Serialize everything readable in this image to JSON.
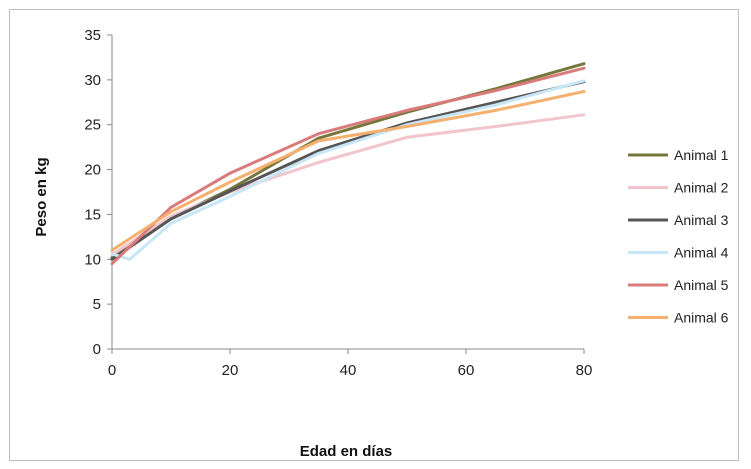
{
  "chart_data": {
    "type": "line",
    "title": "",
    "xlabel": "Edad en días",
    "ylabel": "Peso en kg",
    "xlim": [
      0,
      80
    ],
    "ylim": [
      0,
      35
    ],
    "x_ticks": [
      0,
      20,
      40,
      60,
      80
    ],
    "y_ticks": [
      0,
      5,
      10,
      15,
      20,
      25,
      30,
      35
    ],
    "grid": false,
    "legend_position": "right",
    "series": [
      {
        "name": "Animal 1",
        "color": "#77773c",
        "points": [
          [
            0,
            10.2
          ],
          [
            10,
            14.6
          ],
          [
            20,
            17.8
          ],
          [
            35,
            23.5
          ],
          [
            50,
            26.4
          ],
          [
            65,
            29.0
          ],
          [
            80,
            31.8
          ]
        ]
      },
      {
        "name": "Animal 2",
        "color": "#f2c4cc",
        "points": [
          [
            0,
            10.5
          ],
          [
            10,
            14.8
          ],
          [
            20,
            17.5
          ],
          [
            35,
            20.8
          ],
          [
            50,
            23.6
          ],
          [
            65,
            24.8
          ],
          [
            80,
            26.1
          ]
        ]
      },
      {
        "name": "Animal 3",
        "color": "#555555",
        "points": [
          [
            0,
            10.0
          ],
          [
            10,
            14.5
          ],
          [
            20,
            17.6
          ],
          [
            35,
            22.1
          ],
          [
            50,
            25.2
          ],
          [
            65,
            27.5
          ],
          [
            80,
            29.8
          ]
        ]
      },
      {
        "name": "Animal 4",
        "color": "#c8e6f5",
        "points": [
          [
            0,
            10.6
          ],
          [
            3,
            10.0
          ],
          [
            10,
            14.0
          ],
          [
            20,
            17.0
          ],
          [
            35,
            21.8
          ],
          [
            50,
            25.0
          ],
          [
            65,
            27.2
          ],
          [
            80,
            29.9
          ]
        ]
      },
      {
        "name": "Animal 5",
        "color": "#d97b7b",
        "points": [
          [
            0,
            9.5
          ],
          [
            10,
            15.8
          ],
          [
            20,
            19.6
          ],
          [
            35,
            24.0
          ],
          [
            50,
            26.6
          ],
          [
            65,
            28.8
          ],
          [
            80,
            31.3
          ]
        ]
      },
      {
        "name": "Animal 6",
        "color": "#f5b070",
        "points": [
          [
            0,
            11.0
          ],
          [
            10,
            15.3
          ],
          [
            20,
            18.6
          ],
          [
            35,
            23.2
          ],
          [
            50,
            24.8
          ],
          [
            65,
            26.6
          ],
          [
            80,
            28.7
          ]
        ]
      }
    ]
  }
}
